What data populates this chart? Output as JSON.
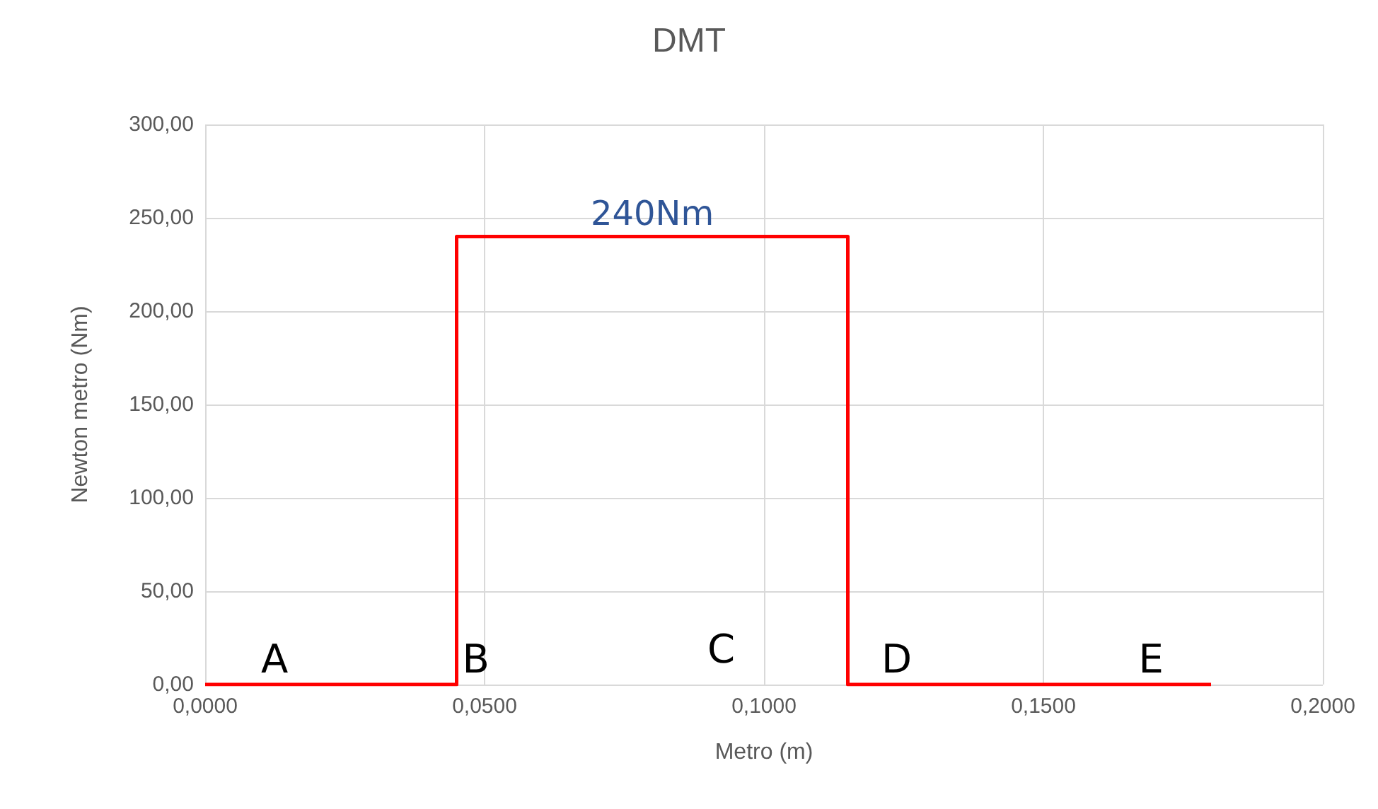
{
  "chart_data": {
    "type": "line",
    "title": "DMT",
    "xlabel": "Metro (m)",
    "ylabel": "Newton metro (Nm)",
    "x": [
      0,
      0.045,
      0.045,
      0.115,
      0.115,
      0.18
    ],
    "series": [
      {
        "color": "#ff0000",
        "values": [
          0,
          0,
          240,
          240,
          0,
          0
        ]
      }
    ],
    "xlim": [
      0,
      0.2
    ],
    "xticks": [
      {
        "value": 0,
        "label": "0,0000"
      },
      {
        "value": 0.05,
        "label": "0,0500"
      },
      {
        "value": 0.1,
        "label": "0,1000"
      },
      {
        "value": 0.15,
        "label": "0,1500"
      },
      {
        "value": 0.2,
        "label": "0,2000"
      }
    ],
    "ylim": [
      0,
      300
    ],
    "yticks": [
      {
        "value": 0,
        "label": "0,00"
      },
      {
        "value": 50,
        "label": "50,00"
      },
      {
        "value": 100,
        "label": "100,00"
      },
      {
        "value": 150,
        "label": "150,00"
      },
      {
        "value": 200,
        "label": "200,00"
      },
      {
        "value": 250,
        "label": "250,00"
      },
      {
        "value": 300,
        "label": "300,00"
      }
    ],
    "annotations": [
      {
        "text": "240Nm",
        "x": 0.08,
        "y": 240
      },
      {
        "text": "A",
        "x": 0.009,
        "y": 0
      },
      {
        "text": "B",
        "x": 0.045,
        "y": 0
      },
      "C",
      {
        "text": "D",
        "x": 0.12,
        "y": 0
      },
      {
        "text": "E",
        "x": 0.166,
        "y": 0
      }
    ],
    "grid": true,
    "marker": "none",
    "line_style": "solid"
  }
}
